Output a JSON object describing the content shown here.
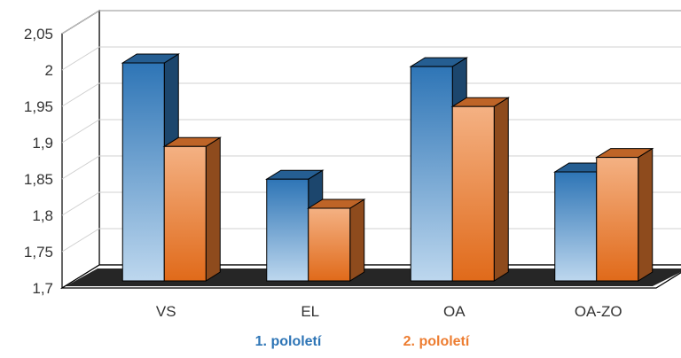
{
  "chart_data": {
    "type": "bar",
    "style": "3d-clustered-column",
    "categories": [
      "VS",
      "EL",
      "OA",
      "OA-ZO"
    ],
    "series": [
      {
        "name": "1. pololetí",
        "values": [
          2.0,
          1.84,
          1.995,
          1.85
        ],
        "color": "#2E75B6",
        "color_light": "#BDD7EE"
      },
      {
        "name": "2. pololetí",
        "values": [
          1.885,
          1.8,
          1.94,
          1.87
        ],
        "color": "#ED7D31",
        "color_light": "#F4B183"
      }
    ],
    "title": "",
    "xlabel": "",
    "ylabel": "",
    "ylim": [
      1.7,
      2.05
    ],
    "yticks": [
      "1,7",
      "1,75",
      "1,8",
      "1,85",
      "1,9",
      "1,95",
      "2",
      "2,05"
    ],
    "grid": true,
    "legend_position": "bottom"
  }
}
